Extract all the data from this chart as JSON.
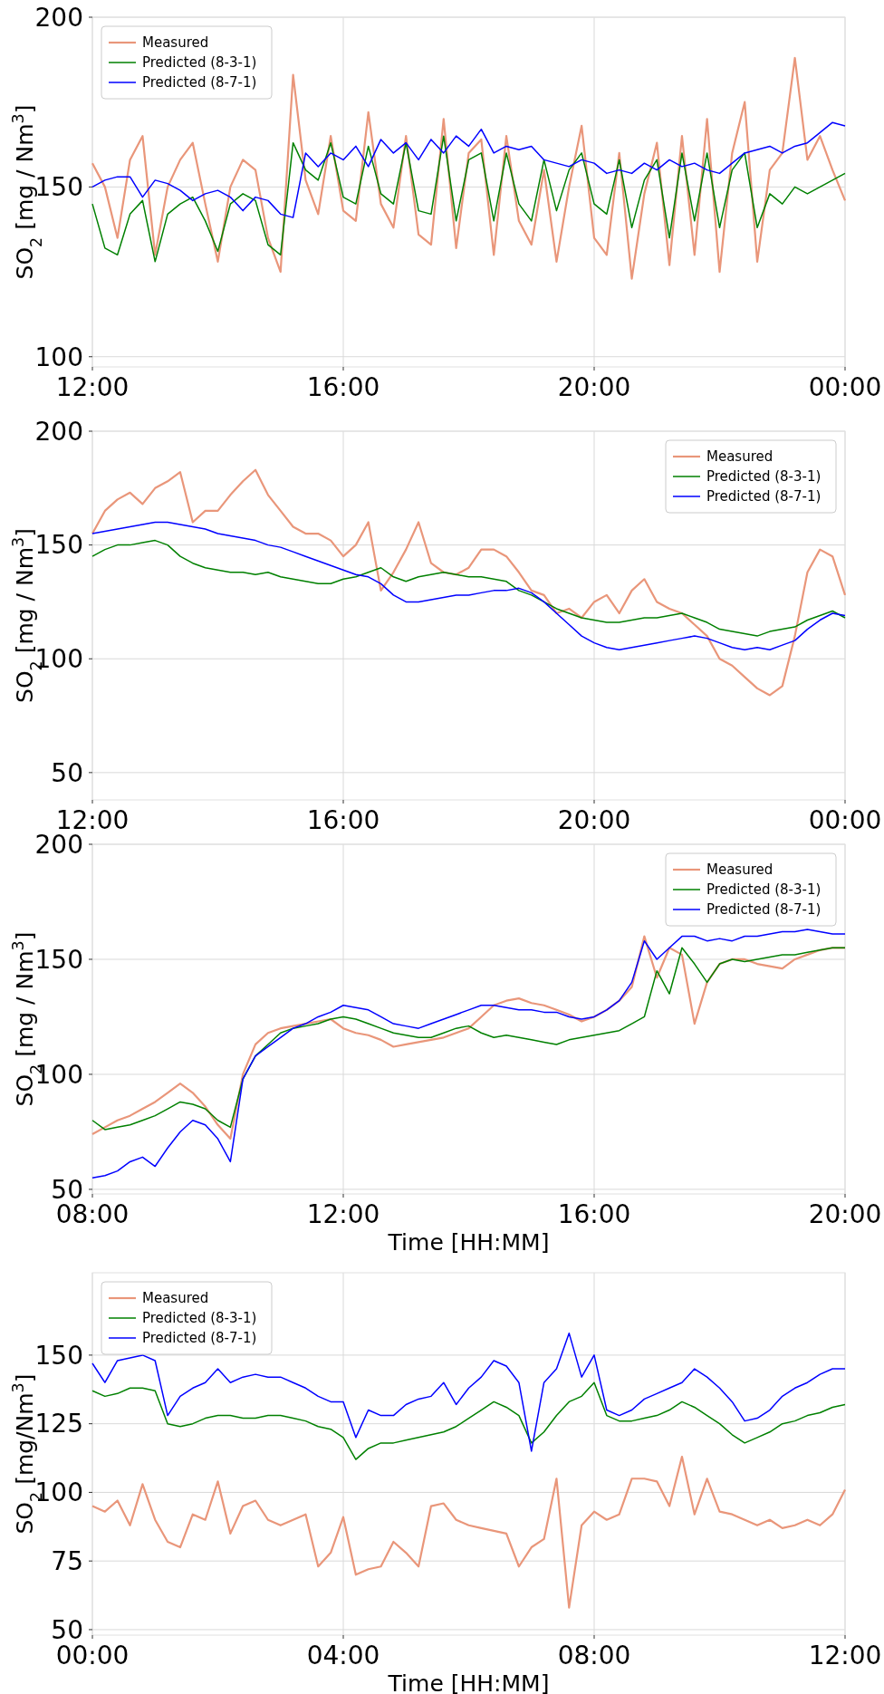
{
  "chart_data": [
    {
      "type": "line",
      "ylabel": "SO$_{2}$ [mg / Nm$^{3}$]",
      "legend": "top left",
      "grid": true,
      "xlim": [
        12,
        24
      ],
      "ylim": [
        97,
        200
      ],
      "xticks": [
        {
          "value": 12,
          "label": "12:00"
        },
        {
          "value": 16,
          "label": "16:00"
        },
        {
          "value": 20,
          "label": "20:00"
        },
        {
          "value": 24,
          "label": "00:00"
        }
      ],
      "yticks": [
        100,
        150,
        200
      ],
      "x": [
        12,
        12.2,
        12.4,
        12.6,
        12.8,
        13,
        13.2,
        13.4,
        13.6,
        13.8,
        14,
        14.2,
        14.4,
        14.6,
        14.8,
        15,
        15.2,
        15.4,
        15.6,
        15.8,
        16,
        16.2,
        16.4,
        16.6,
        16.8,
        17,
        17.2,
        17.4,
        17.6,
        17.8,
        18,
        18.2,
        18.4,
        18.6,
        18.8,
        19,
        19.2,
        19.4,
        19.6,
        19.8,
        20,
        20.2,
        20.4,
        20.6,
        20.8,
        21,
        21.2,
        21.4,
        21.6,
        21.8,
        22,
        22.2,
        22.4,
        22.6,
        22.8,
        23,
        23.2,
        23.4,
        23.6,
        23.8,
        24
      ],
      "series": [
        {
          "name": "Measured",
          "color": "#e9967a",
          "values": [
            157,
            150,
            135,
            158,
            165,
            130,
            150,
            158,
            163,
            145,
            128,
            150,
            158,
            155,
            135,
            125,
            183,
            152,
            142,
            165,
            143,
            140,
            172,
            145,
            138,
            165,
            136,
            133,
            170,
            132,
            160,
            164,
            130,
            165,
            140,
            133,
            155,
            128,
            150,
            168,
            135,
            130,
            160,
            123,
            148,
            163,
            127,
            165,
            130,
            170,
            125,
            160,
            175,
            128,
            155,
            160,
            188,
            158,
            165,
            155,
            146
          ]
        },
        {
          "name": "Predicted (8-3-1)",
          "color": "#008000",
          "values": [
            145,
            132,
            130,
            142,
            146,
            128,
            142,
            145,
            147,
            140,
            131,
            145,
            148,
            146,
            133,
            130,
            163,
            155,
            152,
            163,
            147,
            145,
            162,
            148,
            145,
            163,
            143,
            142,
            165,
            140,
            158,
            160,
            140,
            160,
            145,
            140,
            158,
            143,
            155,
            160,
            145,
            142,
            158,
            138,
            152,
            158,
            135,
            160,
            140,
            160,
            138,
            155,
            160,
            138,
            148,
            145,
            150,
            148,
            150,
            152,
            154
          ]
        },
        {
          "name": "Predicted (8-7-1)",
          "color": "#0000ff",
          "values": [
            150,
            152,
            153,
            153,
            147,
            152,
            151,
            149,
            146,
            148,
            149,
            147,
            143,
            147,
            146,
            142,
            141,
            160,
            156,
            160,
            158,
            162,
            156,
            164,
            160,
            163,
            158,
            164,
            160,
            165,
            162,
            167,
            160,
            162,
            161,
            162,
            158,
            157,
            156,
            158,
            157,
            154,
            155,
            154,
            157,
            155,
            158,
            156,
            157,
            155,
            154,
            157,
            160,
            161,
            162,
            160,
            162,
            163,
            166,
            169,
            168
          ]
        }
      ]
    },
    {
      "type": "line",
      "ylabel": "SO$_{2}$ [mg / Nm$^{3}$]",
      "legend": "top right",
      "grid": true,
      "xlim": [
        12,
        24
      ],
      "ylim": [
        38,
        200
      ],
      "xticks": [
        {
          "value": 12,
          "label": "12:00"
        },
        {
          "value": 16,
          "label": "16:00"
        },
        {
          "value": 20,
          "label": "20:00"
        },
        {
          "value": 24,
          "label": "00:00"
        }
      ],
      "yticks": [
        50,
        100,
        150,
        200
      ],
      "x": [
        12,
        12.2,
        12.4,
        12.6,
        12.8,
        13,
        13.2,
        13.4,
        13.6,
        13.8,
        14,
        14.2,
        14.4,
        14.6,
        14.8,
        15,
        15.2,
        15.4,
        15.6,
        15.8,
        16,
        16.2,
        16.4,
        16.6,
        16.8,
        17,
        17.2,
        17.4,
        17.6,
        17.8,
        18,
        18.2,
        18.4,
        18.6,
        18.8,
        19,
        19.2,
        19.4,
        19.6,
        19.8,
        20,
        20.2,
        20.4,
        20.6,
        20.8,
        21,
        21.2,
        21.4,
        21.6,
        21.8,
        22,
        22.2,
        22.4,
        22.6,
        22.8,
        23,
        23.2,
        23.4,
        23.6,
        23.8,
        24
      ],
      "series": [
        {
          "name": "Measured",
          "color": "#e9967a",
          "values": [
            155,
            165,
            170,
            173,
            168,
            175,
            178,
            182,
            160,
            165,
            165,
            172,
            178,
            183,
            172,
            165,
            158,
            155,
            155,
            152,
            145,
            150,
            160,
            130,
            138,
            148,
            160,
            142,
            138,
            137,
            140,
            148,
            148,
            145,
            138,
            130,
            128,
            120,
            122,
            118,
            125,
            128,
            120,
            130,
            135,
            125,
            122,
            120,
            115,
            110,
            100,
            97,
            92,
            87,
            84,
            88,
            110,
            138,
            148,
            145,
            128
          ]
        },
        {
          "name": "Predicted (8-3-1)",
          "color": "#008000",
          "values": [
            145,
            148,
            150,
            150,
            151,
            152,
            150,
            145,
            142,
            140,
            139,
            138,
            138,
            137,
            138,
            136,
            135,
            134,
            133,
            133,
            135,
            136,
            138,
            140,
            136,
            134,
            136,
            137,
            138,
            137,
            136,
            136,
            135,
            134,
            130,
            128,
            125,
            122,
            120,
            118,
            117,
            116,
            116,
            117,
            118,
            118,
            119,
            120,
            118,
            116,
            113,
            112,
            111,
            110,
            112,
            113,
            114,
            117,
            119,
            121,
            118
          ]
        },
        {
          "name": "Predicted (8-7-1)",
          "color": "#0000ff",
          "values": [
            155,
            156,
            157,
            158,
            159,
            160,
            160,
            159,
            158,
            157,
            155,
            154,
            153,
            152,
            150,
            149,
            147,
            145,
            143,
            141,
            139,
            137,
            136,
            133,
            128,
            125,
            125,
            126,
            127,
            128,
            128,
            129,
            130,
            130,
            131,
            129,
            125,
            120,
            115,
            110,
            107,
            105,
            104,
            105,
            106,
            107,
            108,
            109,
            110,
            109,
            107,
            105,
            104,
            105,
            104,
            106,
            108,
            113,
            117,
            120,
            119
          ]
        }
      ]
    },
    {
      "type": "line",
      "ylabel": "SO$_{2}$ [mg / Nm$^{3}$]",
      "xlabel": "Time [HH:MM]",
      "legend": "top right",
      "grid": true,
      "xlim": [
        8,
        20
      ],
      "ylim": [
        48,
        200
      ],
      "xticks": [
        {
          "value": 8,
          "label": "08:00"
        },
        {
          "value": 12,
          "label": "12:00"
        },
        {
          "value": 16,
          "label": "16:00"
        },
        {
          "value": 20,
          "label": "20:00"
        }
      ],
      "yticks": [
        50,
        100,
        150,
        200
      ],
      "x": [
        8,
        8.2,
        8.4,
        8.6,
        8.8,
        9,
        9.2,
        9.4,
        9.6,
        9.8,
        10,
        10.2,
        10.4,
        10.6,
        10.8,
        11,
        11.2,
        11.4,
        11.6,
        11.8,
        12,
        12.2,
        12.4,
        12.6,
        12.8,
        13,
        13.2,
        13.4,
        13.6,
        13.8,
        14,
        14.2,
        14.4,
        14.6,
        14.8,
        15,
        15.2,
        15.4,
        15.6,
        15.8,
        16,
        16.2,
        16.4,
        16.6,
        16.8,
        17,
        17.2,
        17.4,
        17.6,
        17.8,
        18,
        18.2,
        18.4,
        18.6,
        18.8,
        19,
        19.2,
        19.4,
        19.6,
        19.8,
        20
      ],
      "series": [
        {
          "name": "Measured",
          "color": "#e9967a",
          "values": [
            74,
            77,
            80,
            82,
            85,
            88,
            92,
            96,
            92,
            86,
            78,
            72,
            100,
            113,
            118,
            120,
            121,
            122,
            123,
            124,
            120,
            118,
            117,
            115,
            112,
            113,
            114,
            115,
            116,
            118,
            120,
            125,
            130,
            132,
            133,
            131,
            130,
            128,
            126,
            123,
            125,
            128,
            132,
            138,
            160,
            142,
            155,
            152,
            122,
            140,
            148,
            150,
            150,
            148,
            147,
            146,
            150,
            152,
            154,
            155,
            155
          ]
        },
        {
          "name": "Predicted (8-3-1)",
          "color": "#008000",
          "values": [
            80,
            76,
            77,
            78,
            80,
            82,
            85,
            88,
            87,
            85,
            80,
            77,
            98,
            108,
            113,
            118,
            120,
            121,
            122,
            124,
            125,
            124,
            122,
            120,
            118,
            117,
            116,
            116,
            118,
            120,
            121,
            118,
            116,
            117,
            116,
            115,
            114,
            113,
            115,
            116,
            117,
            118,
            119,
            122,
            125,
            145,
            135,
            155,
            148,
            140,
            148,
            150,
            149,
            150,
            151,
            152,
            152,
            153,
            154,
            155,
            155
          ]
        },
        {
          "name": "Predicted (8-7-1)",
          "color": "#0000ff",
          "values": [
            55,
            56,
            58,
            62,
            64,
            60,
            68,
            75,
            80,
            78,
            72,
            62,
            98,
            108,
            112,
            116,
            120,
            122,
            125,
            127,
            130,
            129,
            128,
            125,
            122,
            121,
            120,
            122,
            124,
            126,
            128,
            130,
            130,
            129,
            128,
            128,
            127,
            127,
            125,
            124,
            125,
            128,
            132,
            140,
            158,
            150,
            155,
            160,
            160,
            158,
            159,
            158,
            160,
            160,
            161,
            162,
            162,
            163,
            162,
            161,
            161
          ]
        }
      ]
    },
    {
      "type": "line",
      "ylabel": "SO$_{2}$ [mg/Nm$^{3}$]",
      "xlabel": "Time [HH:MM]",
      "legend": "top left",
      "grid": true,
      "xlim": [
        0,
        12
      ],
      "ylim": [
        48,
        180
      ],
      "xticks": [
        {
          "value": 0,
          "label": "00:00"
        },
        {
          "value": 4,
          "label": "04:00"
        },
        {
          "value": 8,
          "label": "08:00"
        },
        {
          "value": 12,
          "label": "12:00"
        }
      ],
      "yticks": [
        50,
        75,
        100,
        125,
        150
      ],
      "x": [
        0,
        0.2,
        0.4,
        0.6,
        0.8,
        1,
        1.2,
        1.4,
        1.6,
        1.8,
        2,
        2.2,
        2.4,
        2.6,
        2.8,
        3,
        3.2,
        3.4,
        3.6,
        3.8,
        4,
        4.2,
        4.4,
        4.6,
        4.8,
        5,
        5.2,
        5.4,
        5.6,
        5.8,
        6,
        6.2,
        6.4,
        6.6,
        6.8,
        7,
        7.2,
        7.4,
        7.6,
        7.8,
        8,
        8.2,
        8.4,
        8.6,
        8.8,
        9,
        9.2,
        9.4,
        9.6,
        9.8,
        10,
        10.2,
        10.4,
        10.6,
        10.8,
        11,
        11.2,
        11.4,
        11.6,
        11.8,
        12
      ],
      "series": [
        {
          "name": "Measured",
          "color": "#e9967a",
          "values": [
            95,
            93,
            97,
            88,
            103,
            90,
            82,
            80,
            92,
            90,
            104,
            85,
            95,
            97,
            90,
            88,
            90,
            92,
            73,
            78,
            91,
            70,
            72,
            73,
            82,
            78,
            73,
            95,
            96,
            90,
            88,
            87,
            86,
            85,
            73,
            80,
            83,
            105,
            58,
            88,
            93,
            90,
            92,
            105,
            105,
            104,
            95,
            113,
            92,
            105,
            93,
            92,
            90,
            88,
            90,
            87,
            88,
            90,
            88,
            92,
            101
          ]
        },
        {
          "name": "Predicted (8-3-1)",
          "color": "#008000",
          "values": [
            137,
            135,
            136,
            138,
            138,
            137,
            125,
            124,
            125,
            127,
            128,
            128,
            127,
            127,
            128,
            128,
            127,
            126,
            124,
            123,
            120,
            112,
            116,
            118,
            118,
            119,
            120,
            121,
            122,
            124,
            127,
            130,
            133,
            131,
            128,
            118,
            122,
            128,
            133,
            135,
            140,
            128,
            126,
            126,
            127,
            128,
            130,
            133,
            131,
            128,
            125,
            121,
            118,
            120,
            122,
            125,
            126,
            128,
            129,
            131,
            132
          ]
        },
        {
          "name": "Predicted (8-7-1)",
          "color": "#0000ff",
          "values": [
            147,
            140,
            148,
            149,
            150,
            148,
            128,
            135,
            138,
            140,
            145,
            140,
            142,
            143,
            142,
            142,
            140,
            138,
            135,
            133,
            133,
            120,
            130,
            128,
            128,
            132,
            134,
            135,
            140,
            132,
            138,
            142,
            148,
            146,
            140,
            115,
            140,
            145,
            158,
            142,
            150,
            130,
            128,
            130,
            134,
            136,
            138,
            140,
            145,
            142,
            138,
            133,
            126,
            127,
            130,
            135,
            138,
            140,
            143,
            145,
            145
          ]
        }
      ]
    }
  ]
}
